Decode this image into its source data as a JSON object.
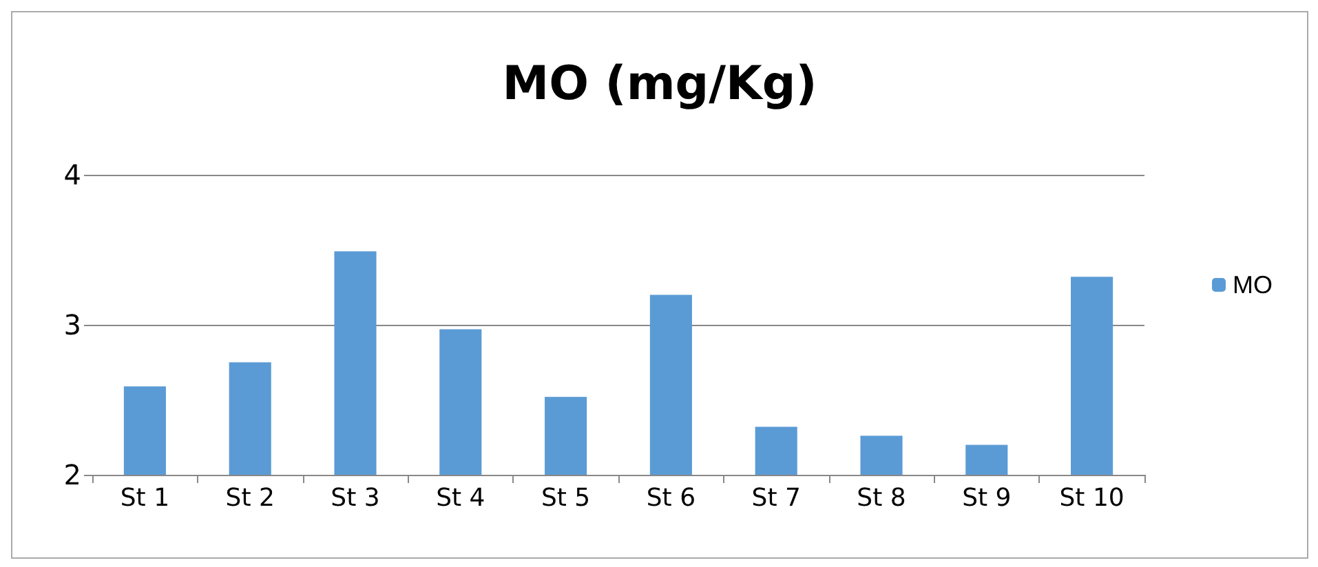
{
  "chart_data": {
    "type": "bar",
    "title": "MO (mg/Kg)",
    "categories": [
      "St 1",
      "St 2",
      "St 3",
      "St 4",
      "St 5",
      "St 6",
      "St 7",
      "St 8",
      "St 9",
      "St 10"
    ],
    "series": [
      {
        "name": "MO",
        "color": "#5b9bd5",
        "values": [
          2.59,
          2.75,
          3.49,
          2.97,
          2.52,
          3.2,
          2.32,
          2.26,
          2.2,
          3.32
        ]
      }
    ],
    "ylim": [
      2,
      4
    ],
    "yticks": [
      2,
      3,
      4
    ],
    "grid": "y",
    "legend": "right"
  }
}
